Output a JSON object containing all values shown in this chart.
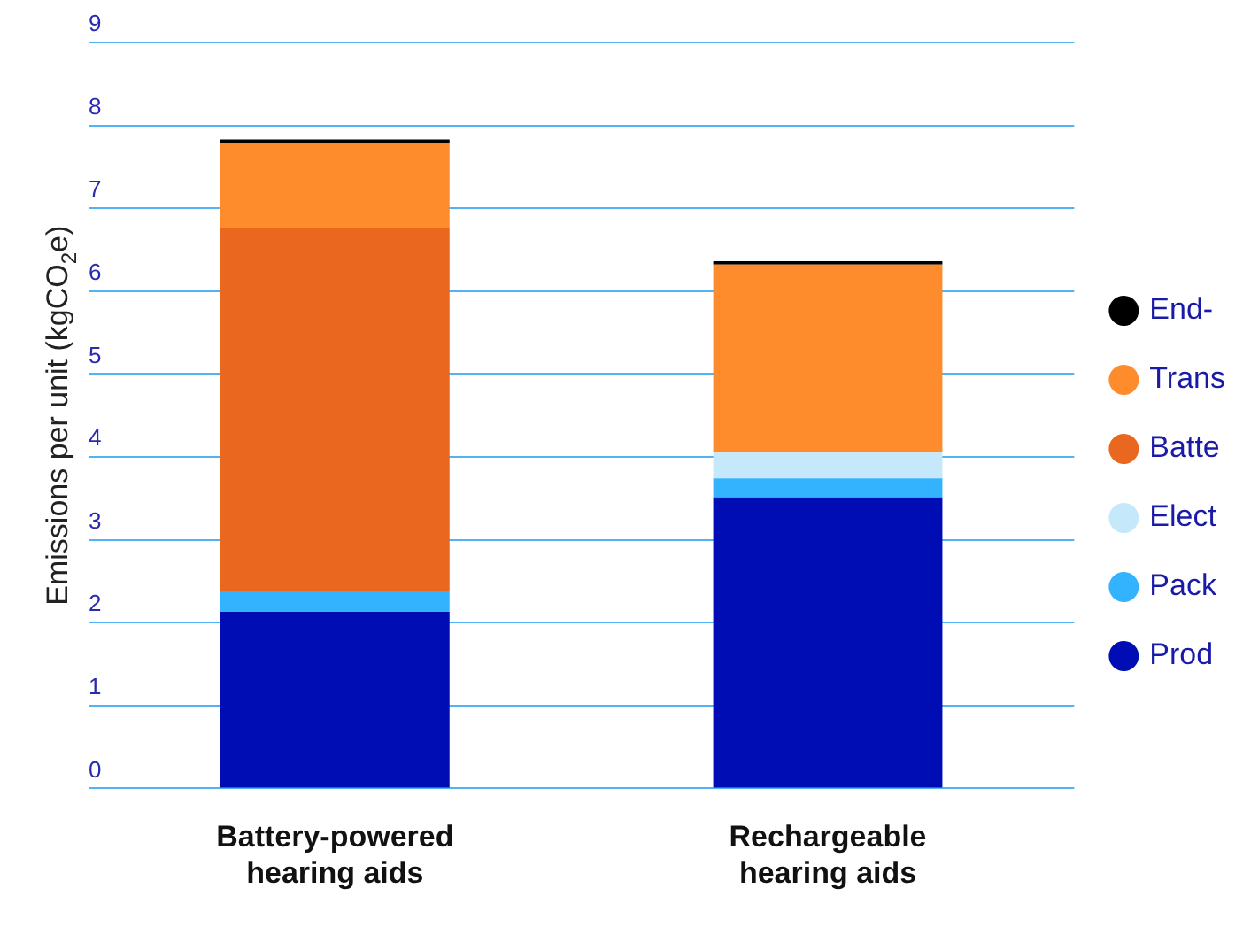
{
  "chart_data": {
    "type": "bar",
    "stacked": true,
    "ylabel": "Emissions per unit (kgCO$_{2}$e)",
    "categories": [
      "Battery-powered hearing aids",
      "Rechargeable hearing aids"
    ],
    "series": [
      {
        "name": "Prod",
        "color": "#000cb4",
        "values": [
          2.13,
          3.51
        ]
      },
      {
        "name": "Pack",
        "color": "#33b2fe",
        "values": [
          0.25,
          0.23
        ]
      },
      {
        "name": "Elect",
        "color": "#c5e8fb",
        "values": [
          0,
          0.31
        ]
      },
      {
        "name": "Batte",
        "color": "#ea6720",
        "values": [
          4.38,
          0
        ]
      },
      {
        "name": "Trans",
        "color": "#fe8c2d",
        "values": [
          1.03,
          2.27
        ]
      },
      {
        "name": "End-",
        "color": "#000000",
        "values": [
          0.04,
          0.04
        ]
      }
    ],
    "ylim": [
      0,
      9
    ],
    "yticks": [
      0,
      1,
      2,
      3,
      4,
      5,
      6,
      7,
      8,
      9
    ],
    "grid": "y",
    "legend": "right"
  }
}
